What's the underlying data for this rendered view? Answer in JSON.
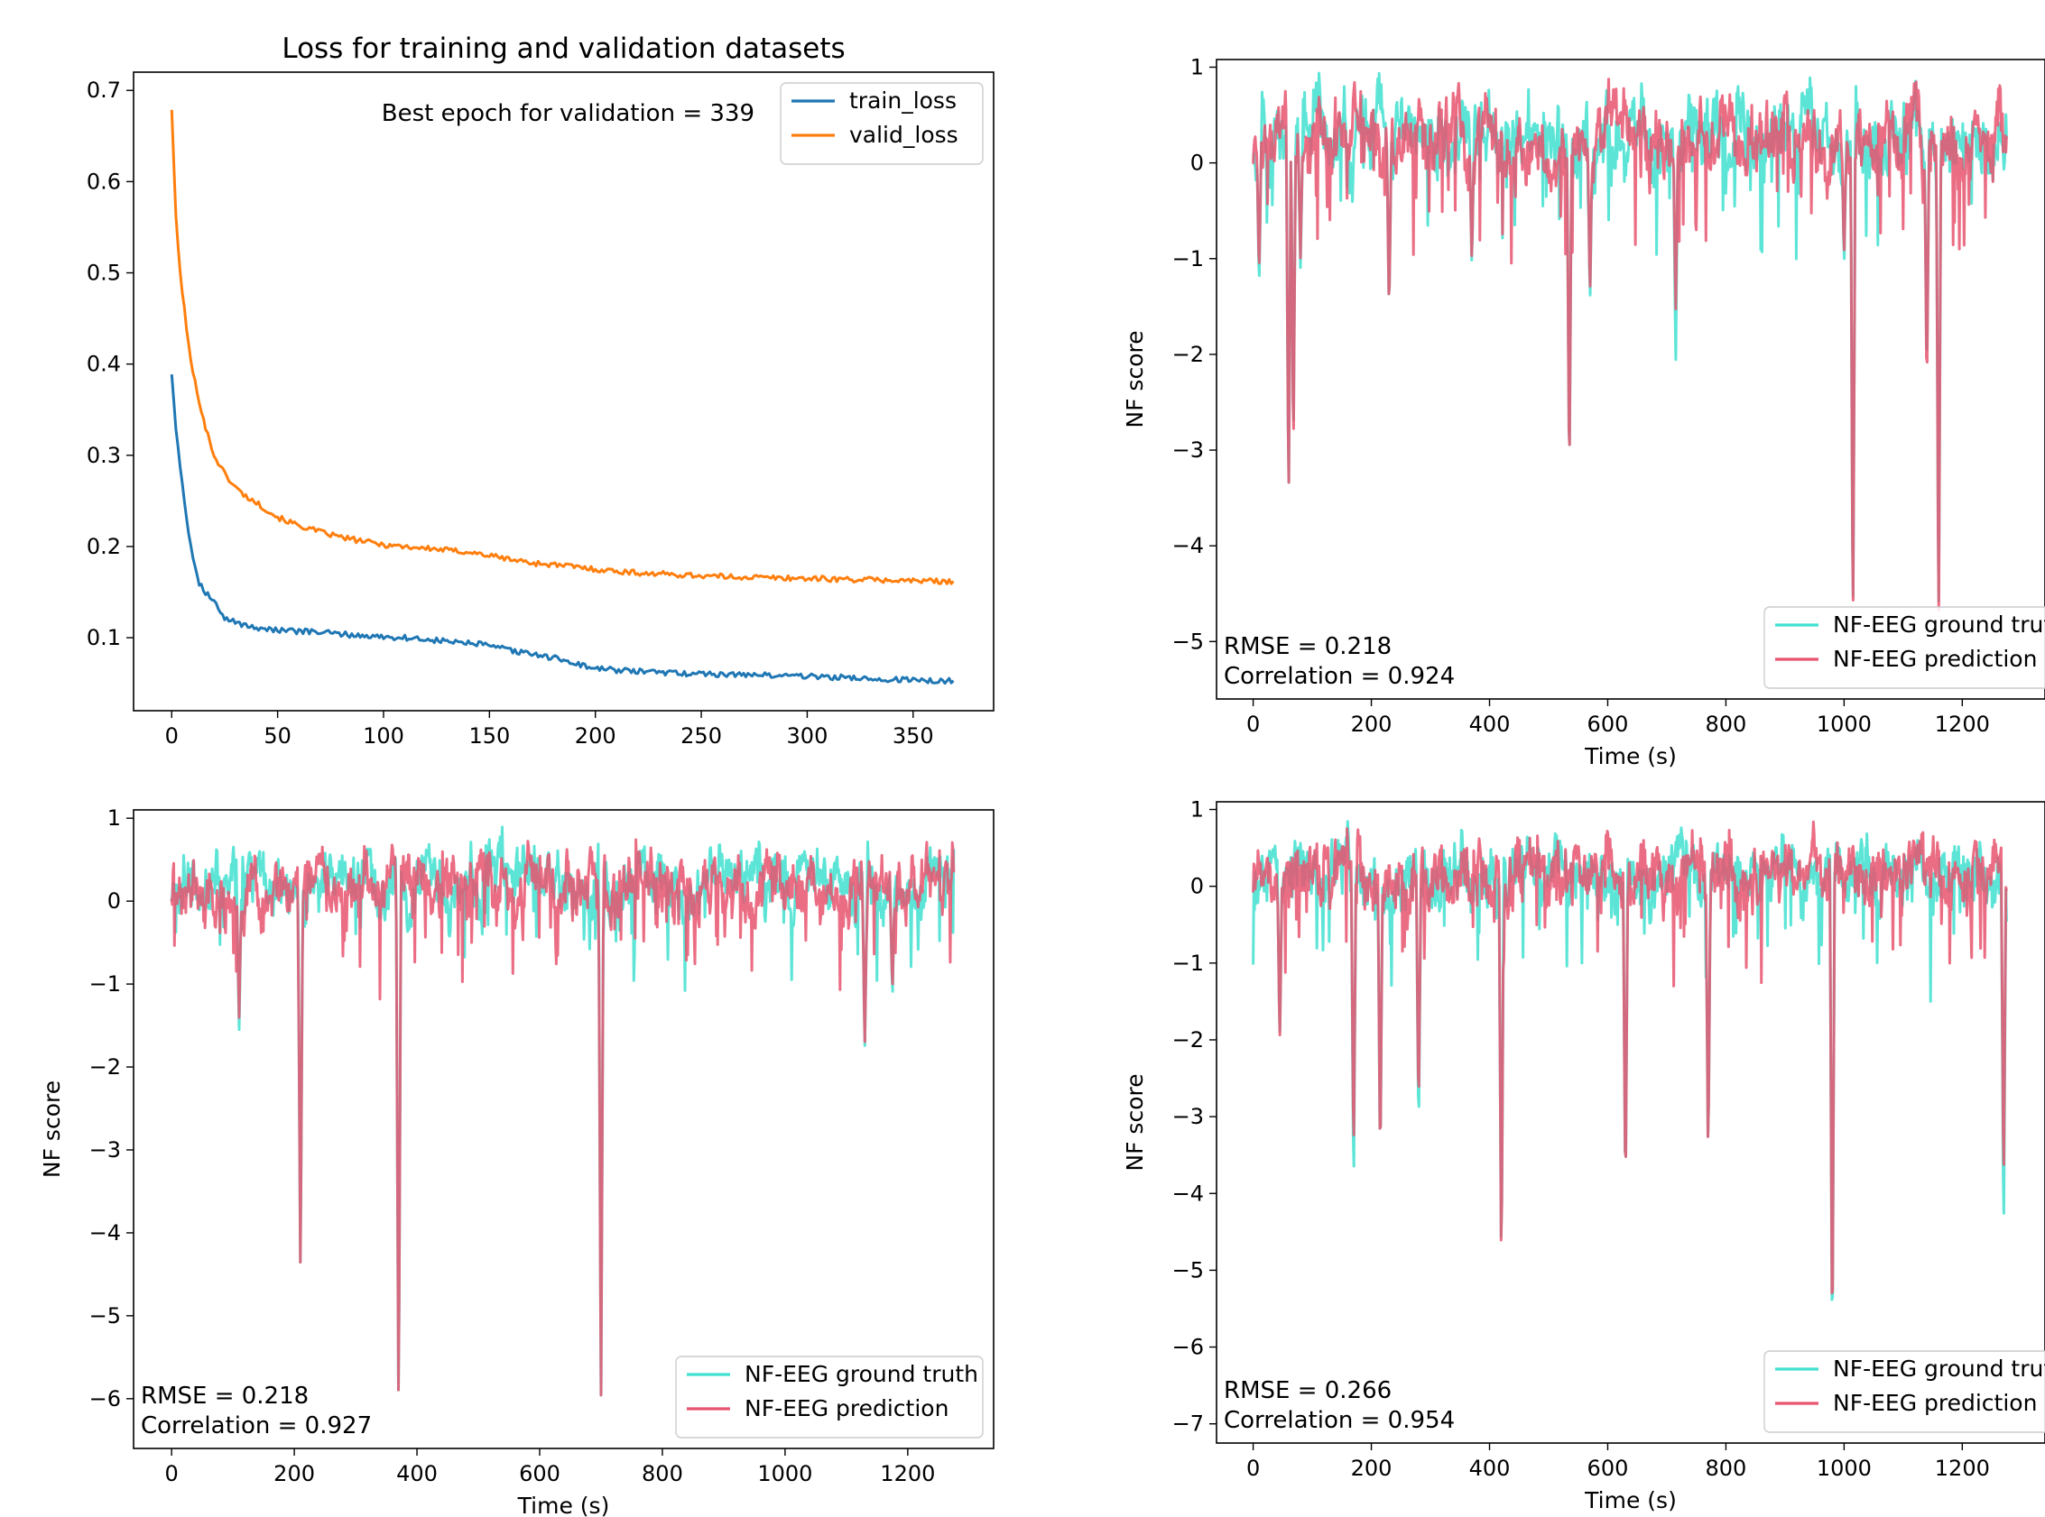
{
  "chart_data": [
    {
      "type": "line",
      "title": "Loss for training and validation datasets",
      "annotation": "Best epoch for validation = 339",
      "xlim": [
        -18,
        388
      ],
      "ylim": [
        0.02,
        0.72
      ],
      "xticks": [
        0,
        50,
        100,
        150,
        200,
        250,
        300,
        350
      ],
      "yticks": [
        0.1,
        0.2,
        0.3,
        0.4,
        0.5,
        0.6,
        0.7
      ],
      "legend_position": "top-right",
      "series": [
        {
          "name": "train_loss",
          "color": "#1f77b4",
          "x": [
            0,
            2,
            4,
            6,
            8,
            10,
            13,
            16,
            20,
            25,
            30,
            35,
            40,
            45,
            50,
            60,
            70,
            80,
            90,
            100,
            110,
            120,
            130,
            140,
            145,
            150,
            160,
            170,
            180,
            185,
            190,
            200,
            220,
            240,
            260,
            280,
            300,
            320,
            340,
            360,
            369
          ],
          "y": [
            0.39,
            0.33,
            0.29,
            0.25,
            0.215,
            0.19,
            0.16,
            0.15,
            0.14,
            0.12,
            0.118,
            0.113,
            0.111,
            0.11,
            0.108,
            0.107,
            0.106,
            0.104,
            0.102,
            0.101,
            0.1,
            0.098,
            0.096,
            0.094,
            0.093,
            0.091,
            0.086,
            0.082,
            0.078,
            0.076,
            0.072,
            0.066,
            0.063,
            0.061,
            0.06,
            0.059,
            0.058,
            0.056,
            0.054,
            0.053,
            0.053
          ]
        },
        {
          "name": "valid_loss",
          "color": "#ff7f0e",
          "x": [
            0,
            2,
            4,
            6,
            8,
            10,
            13,
            16,
            20,
            25,
            30,
            35,
            40,
            45,
            50,
            60,
            70,
            80,
            90,
            100,
            110,
            120,
            130,
            140,
            150,
            160,
            170,
            180,
            190,
            200,
            210,
            220,
            240,
            260,
            280,
            300,
            320,
            340,
            360,
            369
          ],
          "y": [
            0.68,
            0.56,
            0.5,
            0.46,
            0.42,
            0.39,
            0.36,
            0.33,
            0.3,
            0.28,
            0.265,
            0.255,
            0.248,
            0.24,
            0.232,
            0.223,
            0.216,
            0.21,
            0.206,
            0.202,
            0.2,
            0.198,
            0.196,
            0.194,
            0.19,
            0.186,
            0.182,
            0.18,
            0.178,
            0.175,
            0.173,
            0.171,
            0.169,
            0.167,
            0.166,
            0.165,
            0.164,
            0.163,
            0.162,
            0.162
          ]
        }
      ]
    },
    {
      "type": "line",
      "xlabel": "Time (s)",
      "ylabel": "NF score",
      "xlim": [
        -62,
        1340
      ],
      "ylim": [
        -5.6,
        1.08
      ],
      "xticks": [
        0,
        200,
        400,
        600,
        800,
        1000,
        1200
      ],
      "yticks": [
        1,
        0,
        -1,
        -2,
        -3,
        -4,
        -5
      ],
      "legend_position": "bottom-right",
      "stats": [
        "RMSE = 0.218",
        "Correlation = 0.924"
      ],
      "series": [
        {
          "name": "NF-EEG ground truth",
          "color": "#40e0d0",
          "baseline": 0.25,
          "amplitude": 0.35,
          "duration": 1275,
          "seed": 11,
          "dips": [
            [
              10,
              -1.35
            ],
            [
              60,
              -3.6
            ],
            [
              68,
              -3.0
            ],
            [
              80,
              -1.1
            ],
            [
              230,
              -1.6
            ],
            [
              370,
              -1.1
            ],
            [
              535,
              -3.4
            ],
            [
              570,
              -1.5
            ],
            [
              715,
              -2.15
            ],
            [
              1000,
              -1.1
            ],
            [
              1015,
              -5.0
            ],
            [
              1140,
              -2.3
            ],
            [
              1160,
              -4.9
            ]
          ]
        },
        {
          "name": "NF-EEG prediction",
          "color": "#e8536f",
          "baseline": 0.25,
          "amplitude": 0.35,
          "duration": 1275,
          "seed": 12,
          "dips": [
            [
              10,
              -1.2
            ],
            [
              60,
              -3.6
            ],
            [
              68,
              -3.1
            ],
            [
              80,
              -1.0
            ],
            [
              230,
              -1.6
            ],
            [
              370,
              -1.05
            ],
            [
              535,
              -3.4
            ],
            [
              570,
              -1.4
            ],
            [
              715,
              -1.6
            ],
            [
              1000,
              -1.0
            ],
            [
              1015,
              -5.05
            ],
            [
              1140,
              -2.45
            ],
            [
              1160,
              -5.0
            ]
          ]
        }
      ]
    },
    {
      "type": "line",
      "xlabel": "Time (s)",
      "ylabel": "NF score",
      "xlim": [
        -62,
        1340
      ],
      "ylim": [
        -6.6,
        1.1
      ],
      "xticks": [
        0,
        200,
        400,
        600,
        800,
        1000,
        1200
      ],
      "yticks": [
        1,
        0,
        -1,
        -2,
        -3,
        -4,
        -5,
        -6
      ],
      "legend_position": "bottom-right",
      "stats": [
        "RMSE = 0.218",
        "Correlation = 0.927"
      ],
      "series": [
        {
          "name": "NF-EEG ground truth",
          "color": "#40e0d0",
          "baseline": 0.2,
          "amplitude": 0.35,
          "duration": 1275,
          "seed": 21,
          "dips": [
            [
              110,
              -1.6
            ],
            [
              210,
              -4.6
            ],
            [
              370,
              -6.3
            ],
            [
              700,
              -6.1
            ],
            [
              1130,
              -1.8
            ],
            [
              1175,
              -1.2
            ]
          ]
        },
        {
          "name": "NF-EEG prediction",
          "color": "#e8536f",
          "baseline": 0.2,
          "amplitude": 0.35,
          "duration": 1275,
          "seed": 22,
          "dips": [
            [
              110,
              -1.45
            ],
            [
              210,
              -4.6
            ],
            [
              370,
              -6.3
            ],
            [
              700,
              -6.1
            ],
            [
              1130,
              -1.75
            ],
            [
              1175,
              -1.1
            ]
          ]
        }
      ]
    },
    {
      "type": "line",
      "xlabel": "Time (s)",
      "ylabel": "NF score",
      "xlim": [
        -62,
        1340
      ],
      "ylim": [
        -7.25,
        1.1
      ],
      "xticks": [
        0,
        200,
        400,
        600,
        800,
        1000,
        1200
      ],
      "yticks": [
        1,
        0,
        -1,
        -2,
        -3,
        -4,
        -5,
        -6,
        -7
      ],
      "legend_position": "bottom-right",
      "stats": [
        "RMSE = 0.266",
        "Correlation = 0.954"
      ],
      "series": [
        {
          "name": "NF-EEG ground truth",
          "color": "#40e0d0",
          "baseline": 0.15,
          "amplitude": 0.45,
          "duration": 1275,
          "seed": 31,
          "dips": [
            [
              45,
              -2.0
            ],
            [
              170,
              -4.05
            ],
            [
              215,
              -3.7
            ],
            [
              280,
              -3.3
            ],
            [
              420,
              -5.1
            ],
            [
              630,
              -4.1
            ],
            [
              770,
              -3.6
            ],
            [
              980,
              -6.3
            ],
            [
              1270,
              -4.7
            ]
          ]
        },
        {
          "name": "NF-EEG prediction",
          "color": "#e8536f",
          "baseline": 0.15,
          "amplitude": 0.45,
          "duration": 1275,
          "seed": 32,
          "dips": [
            [
              45,
              -2.05
            ],
            [
              170,
              -3.6
            ],
            [
              215,
              -3.7
            ],
            [
              280,
              -3.0
            ],
            [
              420,
              -5.15
            ],
            [
              630,
              -4.1
            ],
            [
              770,
              -3.6
            ],
            [
              980,
              -6.2
            ],
            [
              1270,
              -4.0
            ]
          ]
        }
      ]
    }
  ]
}
